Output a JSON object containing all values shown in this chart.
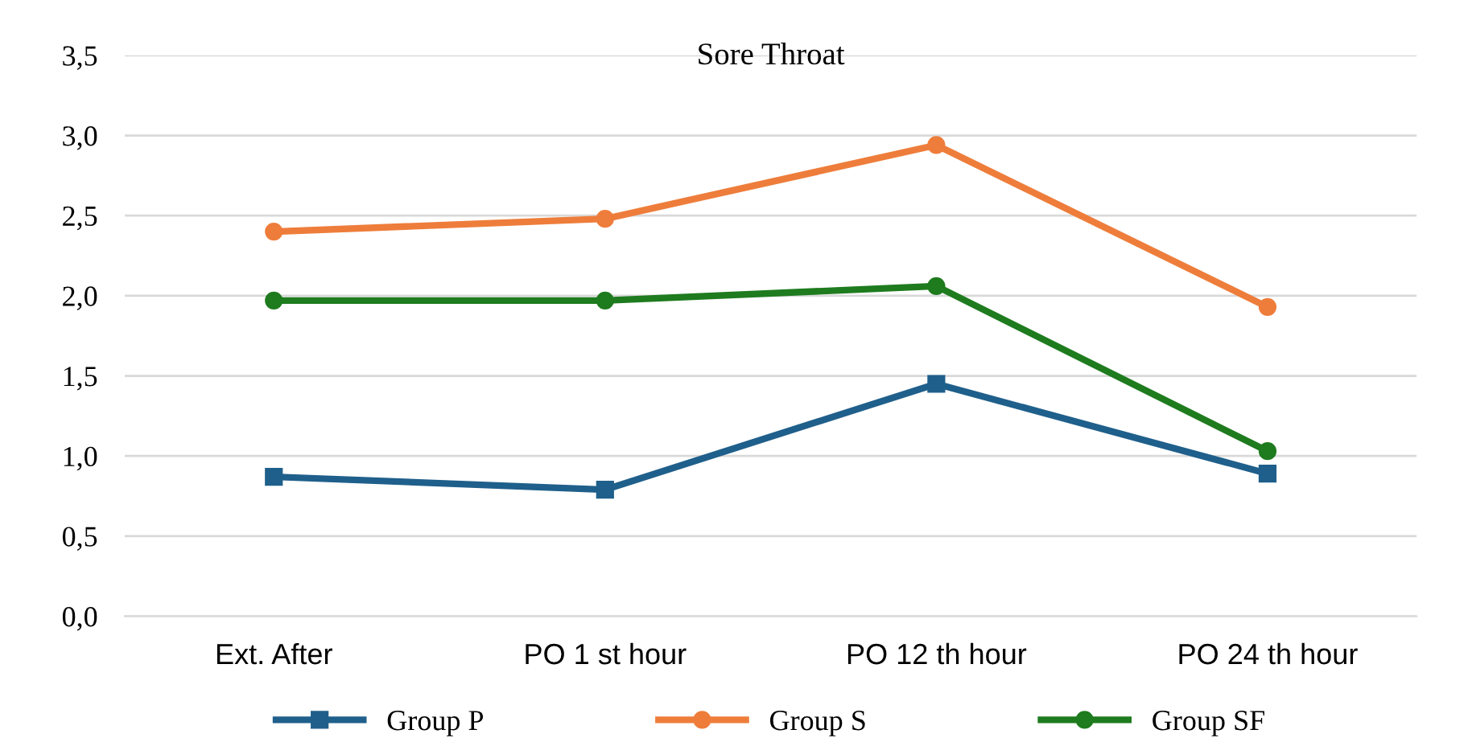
{
  "chart_data": {
    "type": "line",
    "title": "Sore Throat",
    "categories": [
      "Ext. After",
      "PO 1 st hour",
      "PO 12 th hour",
      "PO 24 th hour"
    ],
    "series": [
      {
        "name": "Group P",
        "color": "#1f5f8b",
        "marker": "square",
        "values": [
          0.87,
          0.79,
          1.45,
          0.89
        ]
      },
      {
        "name": "Group S",
        "color": "#ee7d3b",
        "marker": "circle",
        "values": [
          2.4,
          2.48,
          2.94,
          1.93
        ]
      },
      {
        "name": "Group SF",
        "color": "#1e7b1e",
        "marker": "circle",
        "values": [
          1.97,
          1.97,
          2.06,
          1.03
        ]
      }
    ],
    "ylim": [
      0,
      3.5
    ],
    "yticks": [
      {
        "value": 0,
        "label": "0,0"
      },
      {
        "value": 0.5,
        "label": "0,5"
      },
      {
        "value": 1,
        "label": "1,0"
      },
      {
        "value": 1.5,
        "label": "1,5"
      },
      {
        "value": 2,
        "label": "2,0"
      },
      {
        "value": 2.5,
        "label": "2,5"
      },
      {
        "value": 3,
        "label": "3,0"
      },
      {
        "value": 3.5,
        "label": "3,5"
      }
    ],
    "grid": "y",
    "legend": "bottom",
    "line_style": "solid"
  }
}
